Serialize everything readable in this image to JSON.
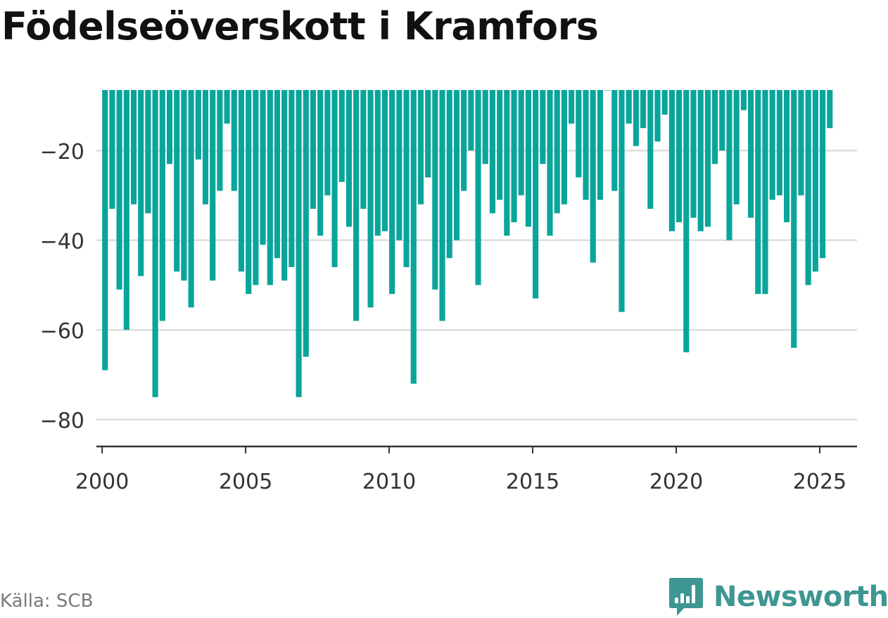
{
  "title": "Födelseöverskott i Kramfors",
  "source": "Källa: SCB",
  "brand": {
    "name": "Newsworthy",
    "icon": "bar-chart-speech-bubble-icon"
  },
  "colors": {
    "bar": "#0aa59a",
    "grid": "#dddddd",
    "axis": "#333333",
    "tick_text": "#333333",
    "brand": "#3e9692"
  },
  "chart_data": {
    "type": "bar",
    "title": "Födelseöverskott i Kramfors",
    "xlabel": "",
    "ylabel": "",
    "ylim": [
      -86,
      -6.5
    ],
    "baseline": -6.5,
    "xlim": [
      1999.8,
      2026.3
    ],
    "grid": "horizontal",
    "y_ticks": [
      {
        "value": -20,
        "label": "−20"
      },
      {
        "value": -40,
        "label": "−40"
      },
      {
        "value": -60,
        "label": "−60"
      },
      {
        "value": -80,
        "label": "−80"
      }
    ],
    "x_ticks": [
      {
        "value": 2000,
        "label": "2000"
      },
      {
        "value": 2005,
        "label": "2005"
      },
      {
        "value": 2010,
        "label": "2010"
      },
      {
        "value": 2015,
        "label": "2015"
      },
      {
        "value": 2020,
        "label": "2020"
      },
      {
        "value": 2025,
        "label": "2025"
      }
    ],
    "bar_width_years": 0.2,
    "start": 2000.0,
    "step": 0.25,
    "periods": [
      "2000 K1",
      "2000 K2",
      "2000 K3",
      "2000 K4",
      "2001 K1",
      "2001 K2",
      "2001 K3",
      "2001 K4",
      "2002 K1",
      "2002 K2",
      "2002 K3",
      "2002 K4",
      "2003 K1",
      "2003 K2",
      "2003 K3",
      "2003 K4",
      "2004 K1",
      "2004 K2",
      "2004 K3",
      "2004 K4",
      "2005 K1",
      "2005 K2",
      "2005 K3",
      "2005 K4",
      "2006 K1",
      "2006 K2",
      "2006 K3",
      "2006 K4",
      "2007 K1",
      "2007 K2",
      "2007 K3",
      "2007 K4",
      "2008 K1",
      "2008 K2",
      "2008 K3",
      "2008 K4",
      "2009 K1",
      "2009 K2",
      "2009 K3",
      "2009 K4",
      "2010 K1",
      "2010 K2",
      "2010 K3",
      "2010 K4",
      "2011 K1",
      "2011 K2",
      "2011 K3",
      "2011 K4",
      "2012 K1",
      "2012 K2",
      "2012 K3",
      "2012 K4",
      "2013 K1",
      "2013 K2",
      "2013 K3",
      "2013 K4",
      "2014 K1",
      "2014 K2",
      "2014 K3",
      "2014 K4",
      "2015 K1",
      "2015 K2",
      "2015 K3",
      "2015 K4",
      "2016 K1",
      "2016 K2",
      "2016 K3",
      "2016 K4",
      "2017 K1",
      "2017 K2",
      "2017 K3",
      "2017 K4",
      "2018 K1",
      "2018 K2",
      "2018 K3",
      "2018 K4",
      "2019 K1",
      "2019 K2",
      "2019 K3",
      "2019 K4",
      "2020 K1",
      "2020 K2",
      "2020 K3",
      "2020 K4",
      "2021 K1",
      "2021 K2",
      "2021 K3",
      "2021 K4",
      "2022 K1",
      "2022 K2",
      "2022 K3",
      "2022 K4",
      "2023 K1",
      "2023 K2",
      "2023 K3",
      "2023 K4",
      "2024 K1",
      "2024 K2",
      "2024 K3",
      "2024 K4",
      "2025 K1",
      "2025 K2"
    ],
    "values": [
      -69,
      -33,
      -51,
      -60,
      -32,
      -48,
      -34,
      -75,
      -58,
      -23,
      -47,
      -49,
      -55,
      -22,
      -32,
      -49,
      -29,
      -14,
      -29,
      -47,
      -52,
      -50,
      -41,
      -50,
      -44,
      -49,
      -46,
      -75,
      -66,
      -33,
      -39,
      -30,
      -46,
      -27,
      -37,
      -58,
      -33,
      -55,
      -39,
      -38,
      -52,
      -40,
      -46,
      -72,
      -32,
      -26,
      -51,
      -58,
      -44,
      -40,
      -29,
      -20,
      -50,
      -23,
      -34,
      -31,
      -39,
      -36,
      -30,
      -37,
      -53,
      -23,
      -39,
      -34,
      -32,
      -14,
      -26,
      -31,
      -45,
      -31,
      -6.5,
      -29,
      -56,
      -14,
      -19,
      -15,
      -33,
      -18,
      -12,
      -38,
      -36,
      -65,
      -35,
      -38,
      -37,
      -23,
      -20,
      -40,
      -32,
      -11,
      -35,
      -52,
      -52,
      -31,
      -30,
      -36,
      -64,
      -30,
      -50,
      -47,
      -44,
      -15
    ]
  }
}
